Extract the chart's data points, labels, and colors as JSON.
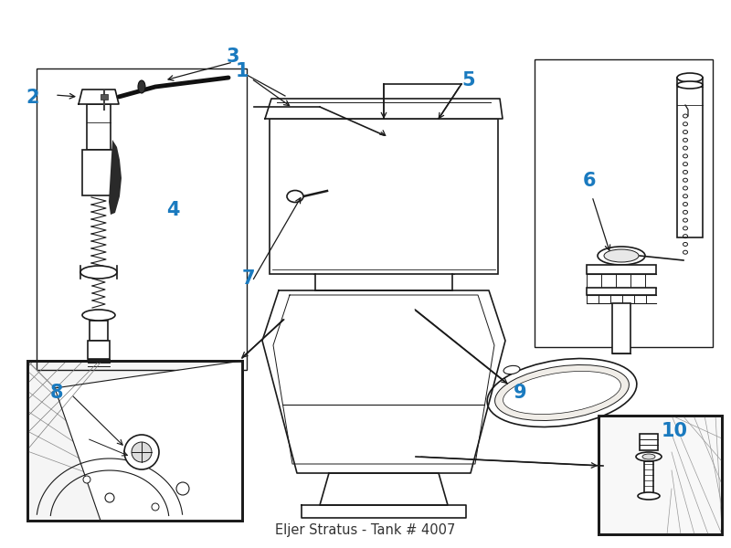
{
  "title": "Eljer Stratus - Tank # 4007",
  "bg_color": "#ffffff",
  "label_color": "#1a7abf",
  "line_color": "#1a1a1a",
  "lw": 1.2,
  "label_fontsize": 15,
  "title_fontsize": 10.5
}
